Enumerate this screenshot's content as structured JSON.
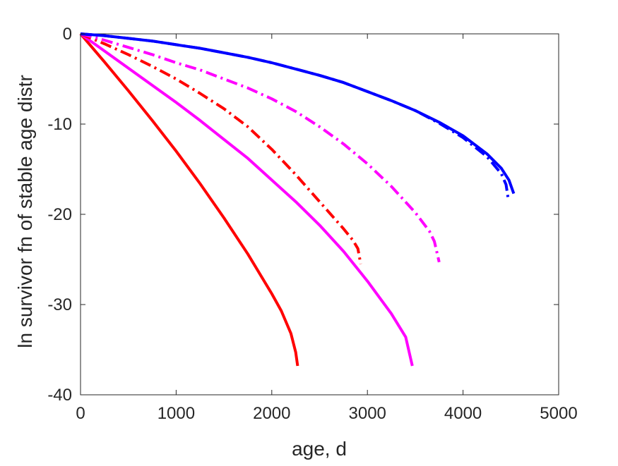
{
  "chart_data": {
    "type": "line",
    "title": "",
    "xlabel": "age, d",
    "ylabel": "ln survivor fn of stable age distr",
    "xlim": [
      0,
      5000
    ],
    "ylim": [
      -40,
      0
    ],
    "xticks": [
      0,
      1000,
      2000,
      3000,
      4000,
      5000
    ],
    "yticks": [
      0,
      -10,
      -20,
      -30,
      -40
    ],
    "xtick_labels": [
      "0",
      "1000",
      "2000",
      "3000",
      "4000",
      "5000"
    ],
    "ytick_labels": [
      "0",
      "-10",
      "-20",
      "-30",
      "-40"
    ],
    "grid": false,
    "legend": "none",
    "series": [
      {
        "color": "#ff0000",
        "style": "solid",
        "x": [
          0,
          250,
          500,
          750,
          1000,
          1250,
          1500,
          1750,
          2000,
          2100,
          2200,
          2250,
          2270
        ],
        "y": [
          0,
          -3.1,
          -6.3,
          -9.6,
          -13.0,
          -16.6,
          -20.4,
          -24.4,
          -28.8,
          -30.7,
          -33.2,
          -35.3,
          -36.8
        ]
      },
      {
        "color": "#ff00ff",
        "style": "solid",
        "x": [
          0,
          250,
          500,
          750,
          1000,
          1250,
          1500,
          1750,
          2000,
          2250,
          2500,
          2750,
          3000,
          3250,
          3400,
          3470
        ],
        "y": [
          0,
          -1.9,
          -3.8,
          -5.7,
          -7.6,
          -9.6,
          -11.7,
          -13.8,
          -16.2,
          -18.6,
          -21.2,
          -24.1,
          -27.4,
          -31.0,
          -33.6,
          -36.8
        ]
      },
      {
        "color": "#ff0000",
        "style": "dashdot",
        "x": [
          0,
          250,
          500,
          750,
          1000,
          1250,
          1500,
          1750,
          2000,
          2250,
          2500,
          2750,
          2850,
          2900,
          2930
        ],
        "y": [
          0,
          -1.1,
          -2.3,
          -3.6,
          -5.0,
          -6.6,
          -8.3,
          -10.3,
          -12.8,
          -15.6,
          -18.6,
          -21.6,
          -22.9,
          -23.8,
          -25.5
        ]
      },
      {
        "color": "#ff00ff",
        "style": "dashdot",
        "x": [
          0,
          250,
          500,
          750,
          1000,
          1250,
          1500,
          1750,
          2000,
          2250,
          2500,
          2750,
          3000,
          3250,
          3500,
          3650,
          3700,
          3750
        ],
        "y": [
          0,
          -0.7,
          -1.5,
          -2.3,
          -3.2,
          -4.0,
          -5.0,
          -6.0,
          -7.2,
          -8.6,
          -10.3,
          -12.2,
          -14.4,
          -16.9,
          -19.8,
          -21.9,
          -23.0,
          -25.3
        ]
      },
      {
        "color": "#0000ff",
        "style": "solid",
        "x": [
          0,
          250,
          500,
          750,
          1000,
          1250,
          1500,
          1750,
          2000,
          2250,
          2500,
          2750,
          3000,
          3250,
          3500,
          3750,
          4000,
          4250,
          4400,
          4480,
          4530
        ],
        "y": [
          0,
          -0.2,
          -0.5,
          -0.8,
          -1.2,
          -1.6,
          -2.1,
          -2.6,
          -3.2,
          -3.9,
          -4.6,
          -5.4,
          -6.4,
          -7.4,
          -8.5,
          -9.8,
          -11.3,
          -13.3,
          -14.9,
          -16.2,
          -17.7
        ]
      },
      {
        "color": "#0000ff",
        "style": "dashdot",
        "x": [
          0,
          250,
          500,
          750,
          1000,
          1250,
          1500,
          1750,
          2000,
          2250,
          2500,
          2750,
          3000,
          3250,
          3500,
          3750,
          4000,
          4250,
          4400,
          4450,
          4470
        ],
        "y": [
          0,
          -0.2,
          -0.5,
          -0.8,
          -1.2,
          -1.6,
          -2.1,
          -2.6,
          -3.2,
          -3.9,
          -4.6,
          -5.4,
          -6.4,
          -7.4,
          -8.5,
          -9.9,
          -11.5,
          -13.6,
          -15.5,
          -16.7,
          -18.1
        ]
      }
    ]
  }
}
